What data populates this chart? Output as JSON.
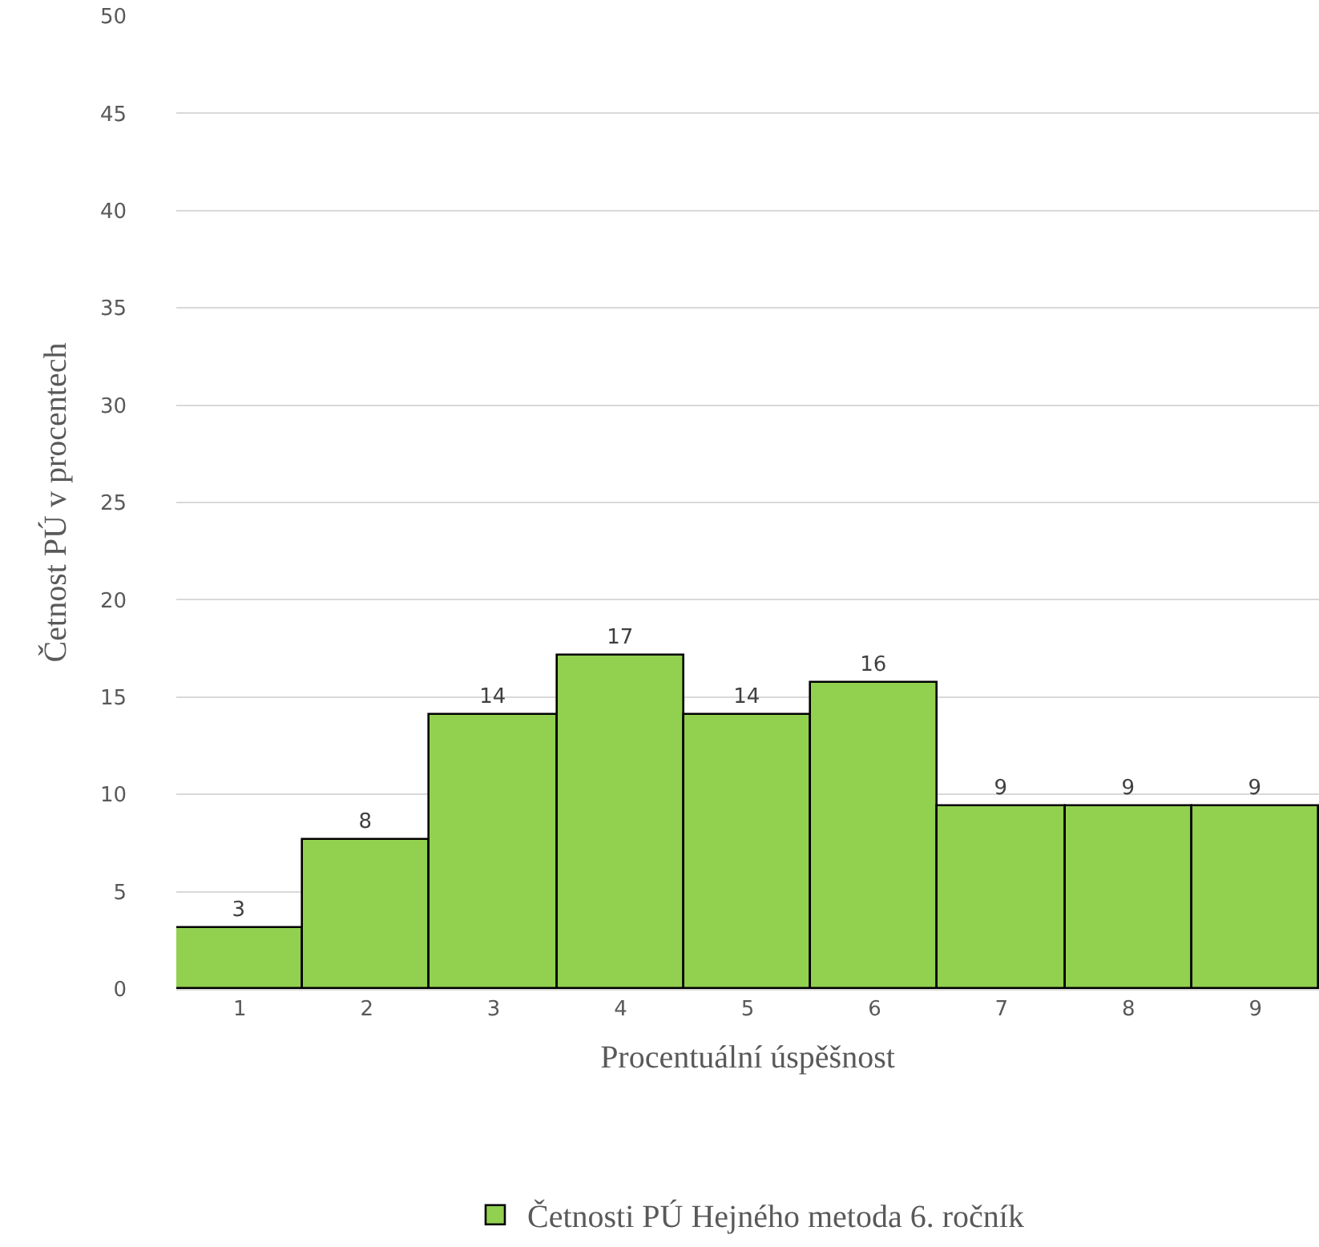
{
  "chart_data": {
    "type": "bar",
    "xlabel": "Procentuální úspěšnost",
    "ylabel": "Četnost PÚ v procentech",
    "categories": [
      "1",
      "2",
      "3",
      "4",
      "5",
      "6",
      "7",
      "8",
      "9"
    ],
    "series": [
      {
        "name": "Četnosti PÚ Hejného metoda 6. ročník",
        "color": "#92d050",
        "values": [
          3.1,
          7.7,
          14.1,
          17.1,
          14.1,
          15.7,
          9.4,
          9.4,
          9.4
        ],
        "value_labels": [
          "3",
          "8",
          "14",
          "17",
          "14",
          "16",
          "9",
          "9",
          "9"
        ]
      }
    ],
    "ylim": [
      0,
      50
    ],
    "yticks": [
      0,
      5,
      10,
      15,
      20,
      25,
      30,
      35,
      40,
      45,
      50
    ],
    "grid": "y",
    "legend": "bottom"
  }
}
